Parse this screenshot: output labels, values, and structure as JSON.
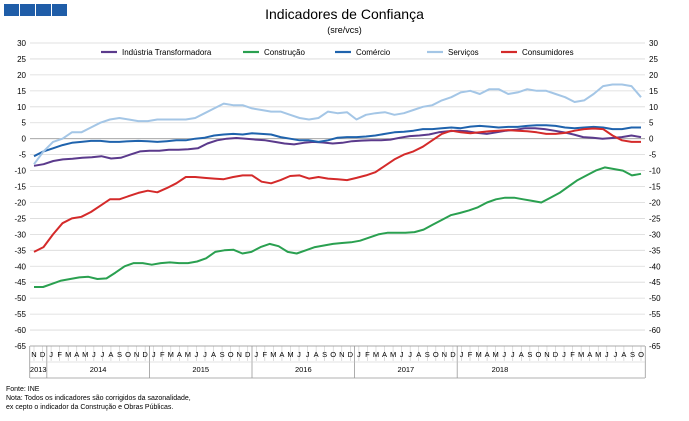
{
  "header": {
    "logo_colors": [
      "#1f5da8",
      "#1f5da8",
      "#1f5da8",
      "#1f5da8"
    ]
  },
  "chart_data": {
    "type": "line",
    "title": "Indicadores de Confiança",
    "subtitle": "(sre/vcs)",
    "ylim": [
      -65,
      30
    ],
    "ytick_step": 5,
    "grid": true,
    "legend_position": "top",
    "month_labels": [
      "N",
      "D",
      "J",
      "F",
      "M",
      "A",
      "M",
      "J",
      "J",
      "A",
      "S",
      "O",
      "N",
      "D",
      "J",
      "F",
      "M",
      "A",
      "M",
      "J",
      "J",
      "A",
      "S",
      "O",
      "N",
      "D",
      "J",
      "F",
      "M",
      "A",
      "M",
      "J",
      "J",
      "A",
      "S",
      "O",
      "N",
      "D",
      "J",
      "F",
      "M",
      "A",
      "M",
      "J",
      "J",
      "A",
      "S",
      "O",
      "N",
      "D",
      "J",
      "F",
      "M",
      "A",
      "M",
      "J",
      "J",
      "A",
      "S",
      "O",
      "N",
      "D",
      "J",
      "F",
      "M",
      "A",
      "M",
      "J",
      "J",
      "A",
      "S",
      "O"
    ],
    "year_labels": [
      {
        "label": "2013",
        "start": 0,
        "end": 1
      },
      {
        "label": "2014",
        "start": 2,
        "end": 13
      },
      {
        "label": "2015",
        "start": 14,
        "end": 25
      },
      {
        "label": "2016",
        "start": 26,
        "end": 37
      },
      {
        "label": "2017",
        "start": 38,
        "end": 49
      },
      {
        "label": "2018",
        "start": 50,
        "end": 59
      }
    ],
    "series": [
      {
        "name": "Indústria Transformadora",
        "color": "#5b3a8c",
        "values": [
          -8.5,
          -8,
          -7,
          -6.5,
          -6.3,
          -6,
          -5.8,
          -5.5,
          -6.2,
          -6,
          -5,
          -4,
          -3.8,
          -3.8,
          -3.5,
          -3.5,
          -3.3,
          -3,
          -1.5,
          -0.5,
          0,
          0.2,
          0,
          -0.3,
          -0.5,
          -1,
          -1.5,
          -1.8,
          -1.3,
          -1,
          -1.2,
          -1.5,
          -1.3,
          -0.8,
          -0.6,
          -0.5,
          -0.5,
          -0.3,
          0.3,
          0.8,
          1,
          1.3,
          2,
          2.3,
          2.5,
          2.3,
          1.8,
          1.5,
          2,
          2.5,
          2.8,
          3.3,
          3.3,
          3,
          2.5,
          2,
          1.3,
          0.5,
          0.3,
          0,
          0.2,
          0.5,
          1,
          0.5
        ]
      },
      {
        "name": "Construção",
        "color": "#2aa050",
        "values": [
          -46.5,
          -46.5,
          -45.5,
          -44.5,
          -44,
          -43.5,
          -43.3,
          -44,
          -43.8,
          -42,
          -40,
          -39,
          -39,
          -39.5,
          -39,
          -38.8,
          -39,
          -39,
          -38.5,
          -37.5,
          -35.5,
          -35,
          -34.8,
          -36,
          -35.5,
          -34,
          -33,
          -33.7,
          -35.5,
          -36,
          -35,
          -34,
          -33.5,
          -33,
          -32.7,
          -32.5,
          -32,
          -31,
          -30,
          -29.5,
          -29.5,
          -29.5,
          -29.3,
          -28.5,
          -27,
          -25.5,
          -24,
          -23.3,
          -22.5,
          -21.5,
          -20,
          -19,
          -18.5,
          -18.5,
          -19,
          -19.5,
          -20,
          -18.5,
          -17,
          -15,
          -13,
          -11.5,
          -10,
          -9,
          -9.5,
          -10,
          -11.5,
          -11
        ]
      },
      {
        "name": "Comércio",
        "color": "#1f63ad",
        "values": [
          -5.5,
          -4,
          -3,
          -2,
          -1.3,
          -1,
          -0.7,
          -0.7,
          -1,
          -1,
          -0.8,
          -0.7,
          -0.8,
          -1,
          -0.8,
          -0.5,
          -0.5,
          0,
          0.3,
          1,
          1.3,
          1.5,
          1.3,
          1.7,
          1.5,
          1.3,
          0.5,
          0,
          -0.5,
          -0.5,
          -1,
          -0.5,
          0.3,
          0.5,
          0.5,
          0.7,
          1,
          1.5,
          2,
          2.2,
          2.5,
          3,
          3,
          3.3,
          3.5,
          3.3,
          3.8,
          4,
          3.8,
          3.5,
          3.7,
          3.7,
          4,
          4.2,
          4.2,
          4,
          3.5,
          3.3,
          3.5,
          3.7,
          3.5,
          3,
          3,
          3.5,
          3.5
        ]
      },
      {
        "name": "Serviços",
        "color": "#a4c6e6",
        "values": [
          -8,
          -4,
          -1,
          0,
          2,
          2,
          3.5,
          5,
          6,
          6.5,
          6,
          5.5,
          5.5,
          6,
          6,
          6,
          6,
          6.5,
          8,
          9.5,
          11,
          10.5,
          10.5,
          9.5,
          9,
          8.5,
          8.5,
          7.5,
          6.5,
          6,
          6.5,
          8.5,
          8,
          8.3,
          6,
          7.5,
          8,
          8.3,
          7.5,
          8,
          9,
          10,
          10.5,
          12,
          13,
          14.5,
          15,
          14,
          15.5,
          15.5,
          14,
          14.5,
          15.5,
          15,
          15,
          14,
          13,
          11.5,
          12,
          14,
          16.5,
          17,
          17,
          16.5,
          13
        ]
      },
      {
        "name": "Consumidores",
        "color": "#d42a2a",
        "values": [
          -35.5,
          -34,
          -30,
          -26.5,
          -25,
          -24.5,
          -23,
          -21,
          -19,
          -19,
          -18,
          -17,
          -16.3,
          -16.8,
          -15.5,
          -14,
          -12,
          -12,
          -12.3,
          -12.5,
          -12.7,
          -12,
          -11.5,
          -11.5,
          -13.5,
          -14,
          -13,
          -11.7,
          -11.5,
          -12.5,
          -12,
          -12.5,
          -12.7,
          -13,
          -12.3,
          -11.5,
          -10.5,
          -8.5,
          -6.5,
          -5,
          -4,
          -2.5,
          -0.5,
          1.5,
          2.5,
          2,
          1.7,
          2,
          2.3,
          2.5,
          2.7,
          2.5,
          2.3,
          2,
          1.5,
          1.5,
          1.8,
          2.5,
          3,
          3.2,
          3,
          1,
          -0.5,
          -1,
          -1
        ]
      }
    ]
  },
  "notes": {
    "source": "Fonte: INE",
    "line1": "Nota: Todos os indicadores são corrigidos da sazonalidade,",
    "line2": "ex cepto o indicador da Construção e Obras Públicas."
  }
}
